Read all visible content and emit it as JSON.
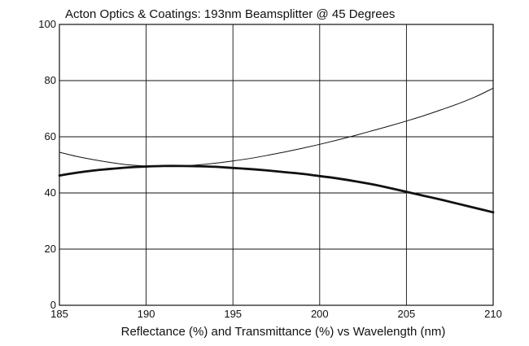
{
  "chart_data": {
    "type": "line",
    "title": "Acton Optics & Coatings: 193nm Beamsplitter @ 45 Degrees",
    "xlabel": "Reflectance (%) and Transmittance (%)  vs  Wavelength (nm)",
    "ylabel": "",
    "xlim": [
      185,
      210
    ],
    "ylim": [
      0,
      100
    ],
    "xticks": [
      185,
      190,
      195,
      200,
      205,
      210
    ],
    "yticks": [
      0,
      20,
      40,
      60,
      80,
      100
    ],
    "grid": true,
    "legend": "none",
    "series": [
      {
        "color": "#111111",
        "weight": "thin",
        "x": [
          185,
          186,
          187,
          188,
          189,
          190,
          191,
          192,
          193,
          194,
          195,
          196,
          197,
          198,
          199,
          200,
          201,
          202,
          203,
          204,
          205,
          206,
          207,
          208,
          209,
          210
        ],
        "y": [
          54.5,
          53.0,
          51.8,
          50.8,
          50.0,
          49.6,
          49.5,
          49.6,
          50.0,
          50.6,
          51.4,
          52.3,
          53.4,
          54.6,
          55.9,
          57.3,
          58.8,
          60.4,
          62.1,
          63.8,
          65.6,
          67.5,
          69.6,
          71.8,
          74.3,
          77.3
        ]
      },
      {
        "color": "#111111",
        "weight": "thick",
        "x": [
          185,
          186,
          187,
          188,
          189,
          190,
          191,
          192,
          193,
          194,
          195,
          196,
          197,
          198,
          199,
          200,
          201,
          202,
          203,
          204,
          205,
          206,
          207,
          208,
          209,
          210
        ],
        "y": [
          46.2,
          47.2,
          48.0,
          48.6,
          49.1,
          49.4,
          49.6,
          49.6,
          49.5,
          49.3,
          48.9,
          48.5,
          48.0,
          47.4,
          46.8,
          46.0,
          45.2,
          44.2,
          43.1,
          41.8,
          40.4,
          39.0,
          37.6,
          36.1,
          34.6,
          33.1
        ]
      }
    ]
  }
}
